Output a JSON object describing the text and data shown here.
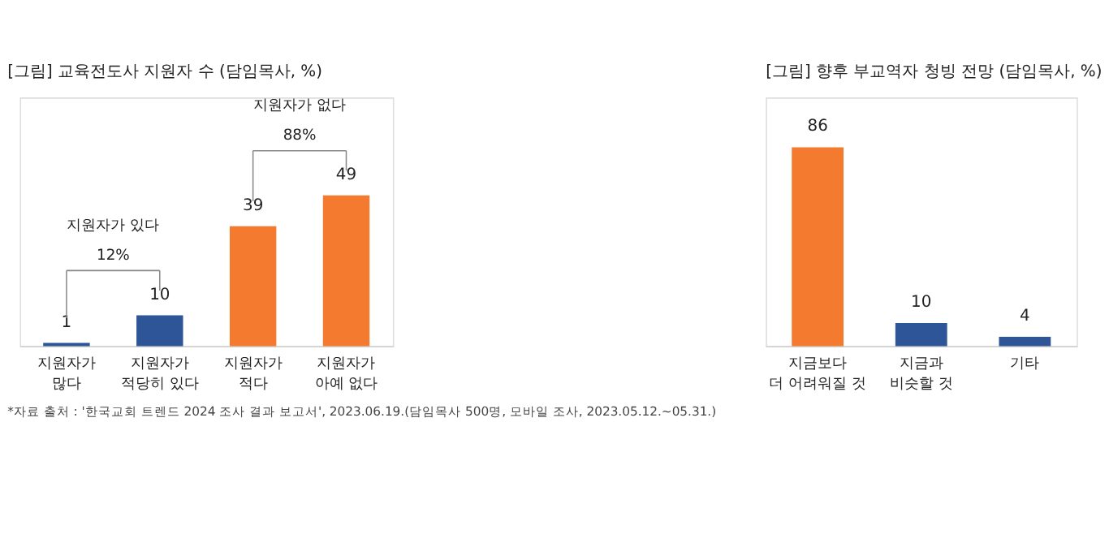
{
  "chart_data": [
    {
      "type": "bar",
      "title": "[그림] 교육전도사 지원자 수 (담임목사, %)",
      "categories": [
        "지원자가\n많다",
        "지원자가\n적당히 있다",
        "지원자가\n적다",
        "지원자가\n아예 없다"
      ],
      "values": [
        1,
        10,
        39,
        49
      ],
      "colors": [
        "#2e5597",
        "#2e5597",
        "#f47a30",
        "#f47a30"
      ],
      "data_labels": true,
      "annotations": [
        "지원자가 있다",
        "12%",
        "지원자가 없다",
        "88%",
        "*자료 출처 : '한국교회 트렌드 2024 조사 결과 보고서', 2023.06.19.(담임목사 500명, 모바일 조사, 2023.05.12.~05.31.)"
      ]
    },
    {
      "type": "bar",
      "title": "[그림] 향후 부교역자 청빙 전망 (담임목사, %)",
      "categories": [
        "지금보다\n더 어려워질 것",
        "지금과\n비슷할 것",
        "기타"
      ],
      "values": [
        86,
        10,
        4
      ],
      "colors": [
        "#f47a30",
        "#2e5597",
        "#2e5597"
      ],
      "data_labels": true
    }
  ]
}
